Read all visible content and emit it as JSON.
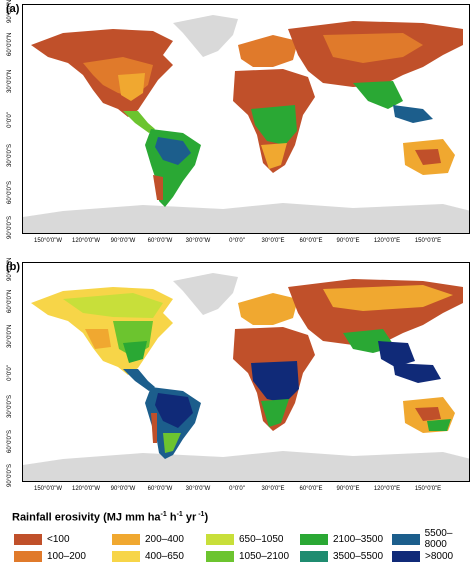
{
  "panels": [
    {
      "label": "(a)"
    },
    {
      "label": "(b)"
    }
  ],
  "lat_labels": [
    "90°0'0\"N",
    "60°0'0\"N",
    "30°0'0\"N",
    "0°0'0\"",
    "30°0'0\"S",
    "60°0'0\"S",
    "90°0'0\"S"
  ],
  "lon_labels": [
    "150°0'0\"W",
    "120°0'0\"W",
    "90°0'0\"W",
    "60°0'0\"W",
    "30°0'0\"W",
    "0°0'0\"",
    "30°0'0\"E",
    "60°0'0\"E",
    "90°0'0\"E",
    "120°0'0\"E",
    "150°0'0\"E"
  ],
  "legend": {
    "title_main": "Rainfall erosivity (MJ mm ha",
    "title_sup1": "-1",
    "title_mid": " h",
    "title_sup2": "-1",
    "title_mid2": " yr",
    "title_sup3": " -1",
    "title_end": ")",
    "classes": [
      {
        "label": "<100",
        "color": "#c0502a"
      },
      {
        "label": "100–200",
        "color": "#e07a2b"
      },
      {
        "label": "200–400",
        "color": "#f0a830"
      },
      {
        "label": "400–650",
        "color": "#f7d548"
      },
      {
        "label": "650–1050",
        "color": "#c8df3a"
      },
      {
        "label": "1050–2100",
        "color": "#6cc42f"
      },
      {
        "label": "2100–3500",
        "color": "#2aa834"
      },
      {
        "label": "3500–5500",
        "color": "#1f8c70"
      },
      {
        "label": "5500–8000",
        "color": "#1c5e8c"
      },
      {
        "label": ">8000",
        "color": "#102a78"
      }
    ],
    "no_data_color": "#d9d9d9"
  }
}
